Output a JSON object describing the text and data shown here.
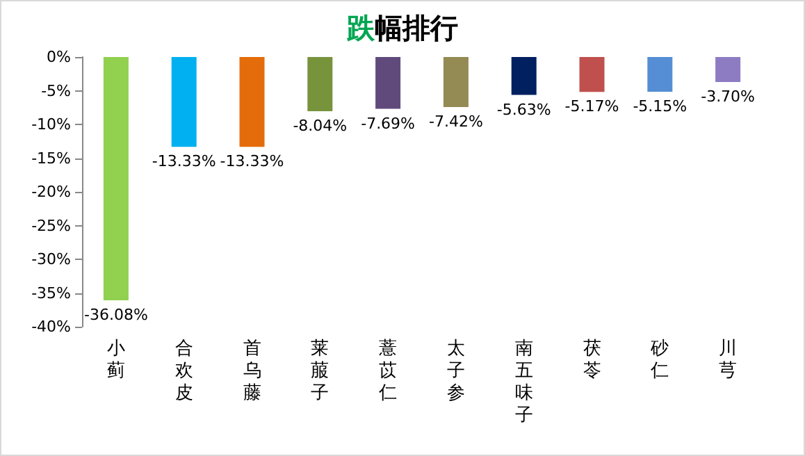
{
  "chart_data": {
    "type": "bar",
    "title": "跌幅排行",
    "categories": [
      "小蓟",
      "合欢皮",
      "首乌藤",
      "莱菔子",
      "薏苡仁",
      "太子参",
      "南五味子",
      "茯苓",
      "砂仁",
      "川芎"
    ],
    "values": [
      -36.08,
      -13.33,
      -13.33,
      -8.04,
      -7.69,
      -7.42,
      -5.63,
      -5.17,
      -5.15,
      -3.7
    ],
    "value_labels": [
      "-36.08%",
      "-13.33%",
      "-13.33%",
      "-8.04%",
      "-7.69%",
      "-7.42%",
      "-5.63%",
      "-5.17%",
      "-5.15%",
      "-3.70%"
    ],
    "colors": [
      "#92d050",
      "#00b0f0",
      "#e46c0a",
      "#77933c",
      "#604a7b",
      "#948a54",
      "#002060",
      "#c0504d",
      "#558ed5",
      "#8e7cc3"
    ],
    "ylim": [
      -40,
      0
    ],
    "yticks": [
      {
        "value": 0,
        "label": "0%"
      },
      {
        "value": -5,
        "label": "-5%"
      },
      {
        "value": -10,
        "label": "-10%"
      },
      {
        "value": -15,
        "label": "-15%"
      },
      {
        "value": -20,
        "label": "-20%"
      },
      {
        "value": -25,
        "label": "-25%"
      },
      {
        "value": -30,
        "label": "-30%"
      },
      {
        "value": -35,
        "label": "-35%"
      },
      {
        "value": -40,
        "label": "-40%"
      }
    ],
    "grid": false
  }
}
